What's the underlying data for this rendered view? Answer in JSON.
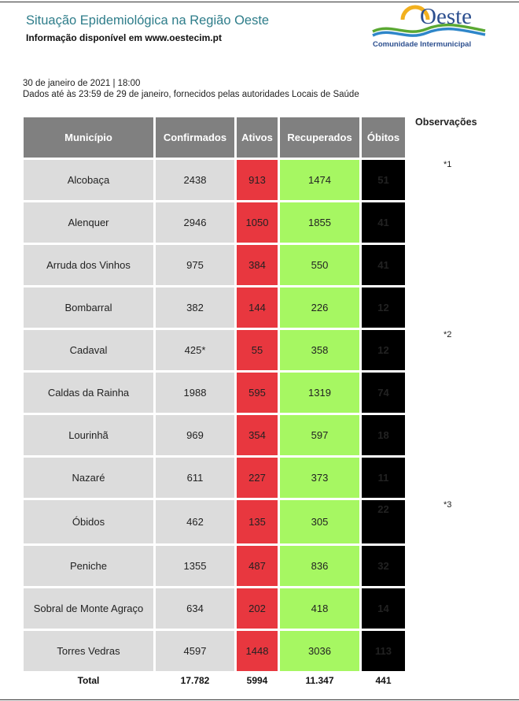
{
  "header": {
    "title": "Situação Epidemiológica na Região Oeste",
    "subtitle": "Informação disponível em www.oestecim.pt"
  },
  "logo": {
    "word": "Oeste",
    "caption": "Comunidade Intermunicipal",
    "colors": {
      "text": "#2c4f8f",
      "wave_blue": "#2e86c9",
      "wave_green": "#5aa832",
      "sun": "#f2b01e"
    }
  },
  "meta": {
    "date_line": "30 de janeiro de 2021 | 18:00",
    "source_line": "Dados até às 23:59 de 29 de janeiro, fornecidos pelas autoridades Locais de Saúde"
  },
  "table": {
    "headers": {
      "municipio": "Município",
      "confirmados": "Confirmados",
      "ativos": "Ativos",
      "recuperados": "Recuperados",
      "obitos": "Óbitos"
    },
    "colors": {
      "header": "#808080",
      "ativos": "#e8373f",
      "recuperados": "#a6f762",
      "obitos": "#000000",
      "base": "#dcdcdc"
    },
    "rows": [
      {
        "municipio": "Alcobaça",
        "confirmados": "2438",
        "ativos": "913",
        "recuperados": "1474",
        "obitos": "51"
      },
      {
        "municipio": "Alenquer",
        "confirmados": "2946",
        "ativos": "1050",
        "recuperados": "1855",
        "obitos": "41"
      },
      {
        "municipio": "Arruda dos Vinhos",
        "confirmados": "975",
        "ativos": "384",
        "recuperados": "550",
        "obitos": "41"
      },
      {
        "municipio": "Bombarral",
        "confirmados": "382",
        "ativos": "144",
        "recuperados": "226",
        "obitos": "12"
      },
      {
        "municipio": "Cadaval",
        "confirmados": "425*",
        "ativos": "55",
        "recuperados": "358",
        "obitos": "12"
      },
      {
        "municipio": "Caldas da Rainha",
        "confirmados": "1988",
        "ativos": "595",
        "recuperados": "1319",
        "obitos": "74"
      },
      {
        "municipio": "Lourinhã",
        "confirmados": "969",
        "ativos": "354",
        "recuperados": "597",
        "obitos": "18"
      },
      {
        "municipio": "Nazaré",
        "confirmados": "611",
        "ativos": "227",
        "recuperados": "373",
        "obitos": "11"
      },
      {
        "municipio": "Óbidos",
        "confirmados": "462",
        "ativos": "135",
        "recuperados": "305",
        "obitos": "22"
      },
      {
        "municipio": "Peniche",
        "confirmados": "1355",
        "ativos": "487",
        "recuperados": "836",
        "obitos": "32"
      },
      {
        "municipio": "Sobral de Monte Agraço",
        "confirmados": "634",
        "ativos": "202",
        "recuperados": "418",
        "obitos": "14"
      },
      {
        "municipio": "Torres Vedras",
        "confirmados": "4597",
        "ativos": "1448",
        "recuperados": "3036",
        "obitos": "113"
      }
    ],
    "total": {
      "label": "Total",
      "confirmados": "17.782",
      "ativos": "5994",
      "recuperados": "11.347",
      "obitos": "441"
    }
  },
  "observacoes": {
    "title": "Observações",
    "notes": [
      "*1",
      "*2",
      "*3"
    ]
  }
}
